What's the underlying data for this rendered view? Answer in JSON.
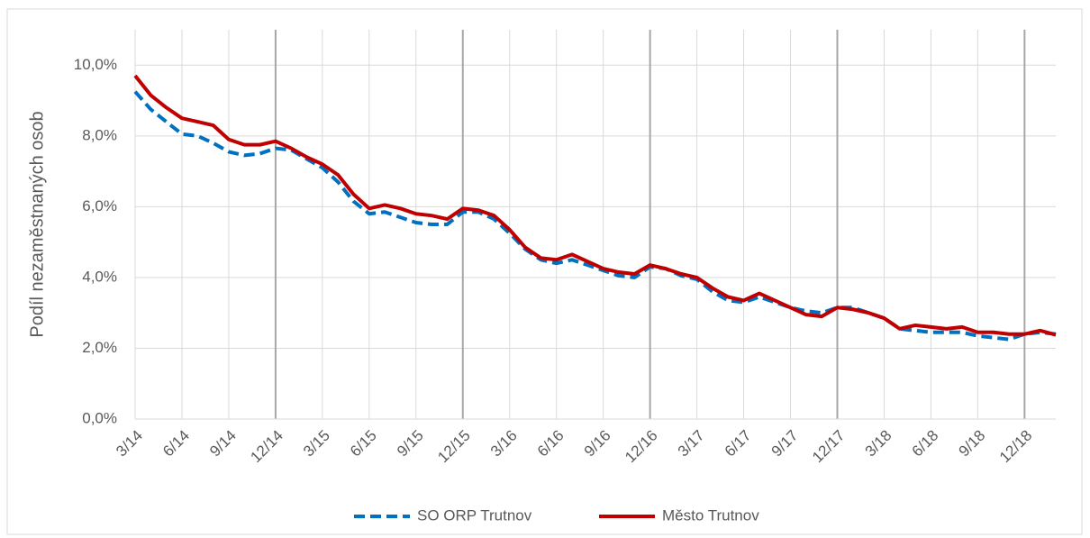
{
  "chart_data": {
    "type": "line",
    "y_label": "Podíl nezaměstnaných osob",
    "categories": [
      "3/14",
      null,
      null,
      "6/14",
      null,
      null,
      "9/14",
      null,
      null,
      "12/14",
      null,
      null,
      "3/15",
      null,
      null,
      "6/15",
      null,
      null,
      "9/15",
      null,
      null,
      "12/15",
      null,
      null,
      "3/16",
      null,
      null,
      "6/16",
      null,
      null,
      "9/16",
      null,
      null,
      "12/16",
      null,
      null,
      "3/17",
      null,
      null,
      "6/17",
      null,
      null,
      "9/17",
      null,
      null,
      "12/17",
      null,
      null,
      "3/18",
      null,
      null,
      "6/18",
      null,
      null,
      "9/18",
      null,
      null,
      "12/18",
      null,
      null
    ],
    "series": [
      {
        "name": "SO ORP Trutnov",
        "color": "#0070c0",
        "dash": true,
        "values": [
          9.25,
          8.75,
          8.4,
          8.05,
          8.0,
          7.8,
          7.55,
          7.45,
          7.5,
          7.65,
          7.6,
          7.35,
          7.1,
          6.7,
          6.15,
          5.8,
          5.85,
          5.7,
          5.55,
          5.5,
          5.5,
          5.85,
          5.85,
          5.65,
          5.25,
          4.8,
          4.5,
          4.4,
          4.5,
          4.35,
          4.2,
          4.05,
          4.0,
          4.3,
          4.25,
          4.05,
          3.95,
          3.6,
          3.35,
          3.3,
          3.45,
          3.3,
          3.15,
          3.05,
          3.0,
          3.15,
          3.15,
          3.0,
          2.85,
          2.55,
          2.5,
          2.45,
          2.45,
          2.45,
          2.35,
          2.3,
          2.25,
          2.4,
          2.45,
          2.4
        ]
      },
      {
        "name": "Město Trutnov",
        "color": "#c00000",
        "dash": false,
        "values": [
          9.7,
          9.15,
          8.8,
          8.5,
          8.4,
          8.3,
          7.9,
          7.75,
          7.75,
          7.85,
          7.65,
          7.4,
          7.2,
          6.9,
          6.35,
          5.95,
          6.05,
          5.95,
          5.8,
          5.75,
          5.65,
          5.95,
          5.9,
          5.75,
          5.35,
          4.85,
          4.55,
          4.5,
          4.65,
          4.45,
          4.25,
          4.15,
          4.1,
          4.35,
          4.25,
          4.1,
          4.0,
          3.7,
          3.45,
          3.35,
          3.55,
          3.35,
          3.15,
          2.95,
          2.9,
          3.15,
          3.1,
          3.0,
          2.85,
          2.55,
          2.65,
          2.6,
          2.55,
          2.6,
          2.45,
          2.45,
          2.4,
          2.4,
          2.5,
          2.38
        ]
      }
    ],
    "ylim": [
      0,
      11
    ],
    "yticks": [
      {
        "value": 0,
        "label": "0,0%"
      },
      {
        "value": 2,
        "label": "2,0%"
      },
      {
        "value": 4,
        "label": "4,0%"
      },
      {
        "value": 6,
        "label": "6,0%"
      },
      {
        "value": 8,
        "label": "8,0%"
      },
      {
        "value": 10,
        "label": "10,0%"
      }
    ],
    "grid": true,
    "legend": "bottom"
  }
}
